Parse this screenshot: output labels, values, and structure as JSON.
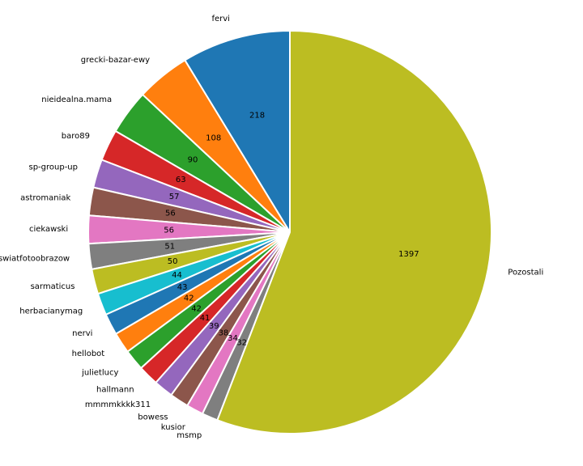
{
  "chart_data": {
    "type": "pie",
    "start_angle_deg": 90,
    "direction": "counterclockwise",
    "categories": [
      "fervi",
      "grecki-bazar-ewy",
      "nieidealna.mama",
      "baro89",
      "sp-group-up",
      "astromaniak",
      "ciekawski",
      "swiatfotoobrazow",
      "sarmaticus",
      "herbacianymag",
      "nervi",
      "hellobot",
      "julietlucy",
      "hallmann",
      "mmmmkkkk311",
      "bowess",
      "kusior",
      "msmp",
      "Pozostali"
    ],
    "values": [
      218,
      108,
      90,
      63,
      57,
      56,
      56,
      51,
      50,
      44,
      43,
      42,
      42,
      41,
      39,
      38,
      34,
      32,
      1397
    ],
    "colors": [
      "#1f77b4",
      "#ff7f0e",
      "#2ca02c",
      "#d62728",
      "#9467bd",
      "#8c564b",
      "#e377c2",
      "#7f7f7f",
      "#bcbd22",
      "#17becf",
      "#1f77b4",
      "#ff7f0e",
      "#2ca02c",
      "#d62728",
      "#9467bd",
      "#8c564b",
      "#e377c2",
      "#7f7f7f",
      "#bcbd22"
    ]
  }
}
